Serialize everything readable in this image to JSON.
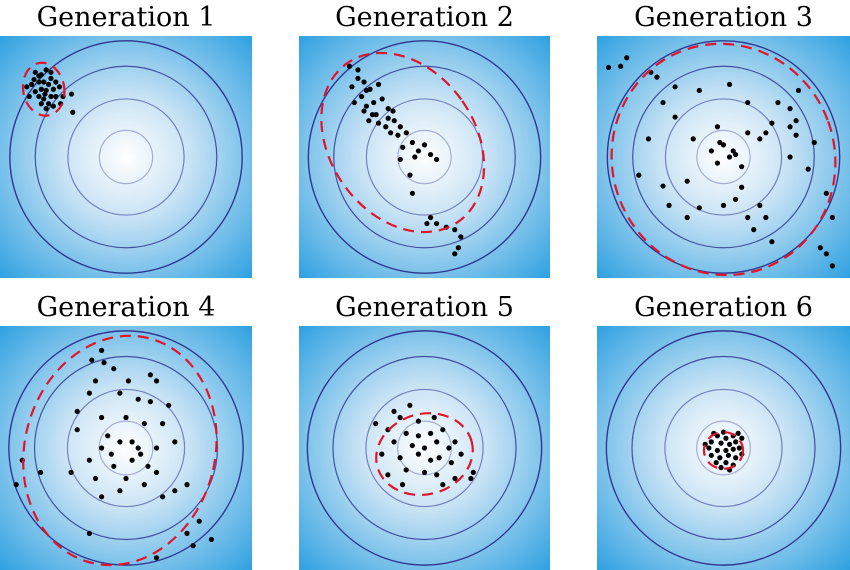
{
  "colors": {
    "background_outer": "#2a9fe0",
    "background_center": "#ffffff",
    "contour": "#2b2f8a",
    "ellipse": "#e0152b",
    "points": "#000000"
  },
  "panels": [
    {
      "title": "Generation 1",
      "ellipse": {
        "cx": -0.68,
        "cy": 0.56,
        "rx": 0.17,
        "ry": 0.22,
        "rot": -10
      },
      "points": [
        [
          -0.75,
          0.7
        ],
        [
          -0.7,
          0.68
        ],
        [
          -0.66,
          0.72
        ],
        [
          -0.62,
          0.65
        ],
        [
          -0.72,
          0.62
        ],
        [
          -0.78,
          0.6
        ],
        [
          -0.64,
          0.6
        ],
        [
          -0.58,
          0.62
        ],
        [
          -0.7,
          0.56
        ],
        [
          -0.75,
          0.54
        ],
        [
          -0.66,
          0.55
        ],
        [
          -0.6,
          0.56
        ],
        [
          -0.55,
          0.58
        ],
        [
          -0.8,
          0.5
        ],
        [
          -0.72,
          0.5
        ],
        [
          -0.68,
          0.48
        ],
        [
          -0.62,
          0.5
        ],
        [
          -0.58,
          0.5
        ],
        [
          -0.64,
          0.44
        ],
        [
          -0.7,
          0.44
        ],
        [
          -0.6,
          0.42
        ],
        [
          -0.54,
          0.44
        ],
        [
          -0.76,
          0.64
        ],
        [
          -0.68,
          0.62
        ],
        [
          -0.52,
          0.5
        ],
        [
          -0.45,
          0.52
        ],
        [
          -0.44,
          0.37
        ],
        [
          -0.66,
          0.4
        ],
        [
          -0.82,
          0.58
        ],
        [
          -0.62,
          0.7
        ],
        [
          -0.72,
          0.67
        ],
        [
          -0.67,
          0.52
        ]
      ]
    },
    {
      "title": "Generation 2",
      "ellipse": {
        "cx": -0.18,
        "cy": 0.12,
        "rx": 0.6,
        "ry": 0.8,
        "rot": -35
      },
      "points": [
        [
          -0.62,
          0.75
        ],
        [
          -0.55,
          0.72
        ],
        [
          -0.5,
          0.62
        ],
        [
          -0.6,
          0.58
        ],
        [
          -0.45,
          0.56
        ],
        [
          -0.52,
          0.5
        ],
        [
          -0.58,
          0.45
        ],
        [
          -0.48,
          0.42
        ],
        [
          -0.42,
          0.45
        ],
        [
          -0.35,
          0.48
        ],
        [
          -0.3,
          0.4
        ],
        [
          -0.4,
          0.35
        ],
        [
          -0.46,
          0.3
        ],
        [
          -0.38,
          0.28
        ],
        [
          -0.32,
          0.25
        ],
        [
          -0.25,
          0.3
        ],
        [
          -0.2,
          0.25
        ],
        [
          -0.28,
          0.2
        ],
        [
          -0.22,
          0.18
        ],
        [
          -0.15,
          0.2
        ],
        [
          -0.1,
          0.12
        ],
        [
          -0.18,
          0.08
        ],
        [
          -0.05,
          0.05
        ],
        [
          0.0,
          0.1
        ],
        [
          -0.08,
          0.0
        ],
        [
          -0.2,
          -0.02
        ],
        [
          0.05,
          0.02
        ],
        [
          0.1,
          -0.02
        ],
        [
          -0.12,
          -0.15
        ],
        [
          -0.1,
          -0.3
        ],
        [
          -0.55,
          0.65
        ],
        [
          -0.48,
          0.55
        ],
        [
          0.02,
          -0.55
        ],
        [
          0.05,
          -0.5
        ],
        [
          0.1,
          -0.55
        ],
        [
          0.18,
          -0.58
        ],
        [
          0.25,
          -0.6
        ],
        [
          0.3,
          -0.66
        ],
        [
          0.25,
          -0.8
        ],
        [
          0.28,
          -0.75
        ],
        [
          -0.38,
          0.6
        ],
        [
          -0.5,
          0.38
        ],
        [
          -0.3,
          0.32
        ],
        [
          -0.43,
          0.35
        ],
        [
          -0.26,
          0.38
        ]
      ]
    },
    {
      "title": "Generation 3",
      "ellipse": {
        "cx": 0.0,
        "cy": -0.02,
        "rx": 0.92,
        "ry": 0.96,
        "rot": -20
      },
      "points": [
        [
          -0.95,
          0.74
        ],
        [
          -0.85,
          0.75
        ],
        [
          -0.8,
          0.82
        ],
        [
          -0.55,
          0.66
        ],
        [
          -0.4,
          0.58
        ],
        [
          -0.5,
          0.45
        ],
        [
          -0.4,
          0.33
        ],
        [
          -0.62,
          0.15
        ],
        [
          -0.7,
          -0.15
        ],
        [
          -0.5,
          -0.24
        ],
        [
          -0.45,
          -0.4
        ],
        [
          -0.3,
          -0.2
        ],
        [
          -0.3,
          -0.5
        ],
        [
          -0.2,
          -0.42
        ],
        [
          0.0,
          -0.4
        ],
        [
          0.1,
          -0.35
        ],
        [
          0.2,
          -0.5
        ],
        [
          0.25,
          -0.6
        ],
        [
          0.3,
          -0.4
        ],
        [
          0.4,
          -0.7
        ],
        [
          0.35,
          -0.5
        ],
        [
          0.0,
          0.1
        ],
        [
          -0.1,
          0.05
        ],
        [
          0.05,
          0.0
        ],
        [
          0.1,
          0.02
        ],
        [
          -0.05,
          -0.05
        ],
        [
          0.15,
          -0.08
        ],
        [
          0.08,
          0.05
        ],
        [
          -0.03,
          0.12
        ],
        [
          0.2,
          0.2
        ],
        [
          0.3,
          0.15
        ],
        [
          0.4,
          0.28
        ],
        [
          0.55,
          0.25
        ],
        [
          0.6,
          0.18
        ],
        [
          0.55,
          0.0
        ],
        [
          0.7,
          -0.1
        ],
        [
          0.85,
          -0.3
        ],
        [
          0.9,
          -0.5
        ],
        [
          0.8,
          -0.75
        ],
        [
          0.85,
          -0.8
        ],
        [
          0.9,
          -0.9
        ],
        [
          -0.05,
          0.25
        ],
        [
          0.45,
          0.45
        ],
        [
          0.55,
          0.4
        ],
        [
          0.6,
          0.3
        ],
        [
          0.2,
          0.45
        ],
        [
          -0.2,
          0.55
        ],
        [
          0.05,
          0.6
        ],
        [
          0.35,
          0.2
        ],
        [
          -0.25,
          0.15
        ],
        [
          0.15,
          -0.25
        ],
        [
          0.75,
          0.12
        ],
        [
          0.62,
          0.55
        ],
        [
          -0.6,
          0.7
        ]
      ]
    },
    {
      "title": "Generation 4",
      "ellipse": {
        "cx": -0.05,
        "cy": -0.02,
        "rx": 0.78,
        "ry": 0.95,
        "rot": 15
      },
      "points": [
        [
          -0.2,
          0.8
        ],
        [
          -0.18,
          0.7
        ],
        [
          -0.1,
          0.65
        ],
        [
          0.2,
          0.6
        ],
        [
          0.25,
          0.55
        ],
        [
          -0.25,
          0.55
        ],
        [
          -0.3,
          0.45
        ],
        [
          -0.05,
          0.45
        ],
        [
          0.1,
          0.4
        ],
        [
          0.2,
          0.38
        ],
        [
          0.35,
          0.35
        ],
        [
          -0.4,
          0.3
        ],
        [
          -0.2,
          0.25
        ],
        [
          0.0,
          0.25
        ],
        [
          0.15,
          0.2
        ],
        [
          -0.15,
          0.1
        ],
        [
          -0.05,
          0.05
        ],
        [
          0.05,
          0.05
        ],
        [
          0.1,
          0.0
        ],
        [
          -0.2,
          0.0
        ],
        [
          0.25,
          0.0
        ],
        [
          0.4,
          0.05
        ],
        [
          -0.3,
          -0.1
        ],
        [
          -0.1,
          -0.15
        ],
        [
          0.05,
          -0.1
        ],
        [
          0.18,
          -0.15
        ],
        [
          0.25,
          -0.2
        ],
        [
          -0.45,
          -0.2
        ],
        [
          -0.25,
          -0.25
        ],
        [
          0.0,
          -0.25
        ],
        [
          0.15,
          -0.3
        ],
        [
          -0.05,
          -0.35
        ],
        [
          -0.2,
          -0.4
        ],
        [
          0.3,
          -0.4
        ],
        [
          0.4,
          -0.35
        ],
        [
          -0.85,
          -0.1
        ],
        [
          -0.9,
          -0.3
        ],
        [
          -0.7,
          -0.2
        ],
        [
          0.5,
          -0.3
        ],
        [
          0.5,
          -0.7
        ],
        [
          0.6,
          -0.6
        ],
        [
          0.7,
          -0.75
        ],
        [
          0.55,
          -0.8
        ],
        [
          0.25,
          -0.9
        ],
        [
          -0.3,
          -0.7
        ],
        [
          -0.28,
          0.72
        ],
        [
          0.02,
          0.55
        ],
        [
          -0.4,
          0.15
        ],
        [
          0.3,
          0.2
        ],
        [
          0.12,
          -0.05
        ],
        [
          -0.12,
          -0.05
        ]
      ]
    },
    {
      "title": "Generation 5",
      "ellipse": {
        "cx": 0.0,
        "cy": -0.05,
        "rx": 0.4,
        "ry": 0.33,
        "rot": -15
      },
      "points": [
        [
          -0.25,
          0.3
        ],
        [
          -0.2,
          0.25
        ],
        [
          -0.05,
          0.22
        ],
        [
          -0.3,
          0.15
        ],
        [
          -0.15,
          0.12
        ],
        [
          -0.05,
          0.1
        ],
        [
          0.05,
          0.12
        ],
        [
          0.15,
          0.15
        ],
        [
          -0.25,
          0.05
        ],
        [
          -0.1,
          0.02
        ],
        [
          0.0,
          0.0
        ],
        [
          0.1,
          0.05
        ],
        [
          0.2,
          0.0
        ],
        [
          0.25,
          0.05
        ],
        [
          -0.35,
          -0.05
        ],
        [
          -0.2,
          -0.08
        ],
        [
          -0.05,
          -0.05
        ],
        [
          0.05,
          -0.1
        ],
        [
          0.12,
          -0.08
        ],
        [
          0.22,
          -0.12
        ],
        [
          0.3,
          -0.05
        ],
        [
          -0.15,
          -0.18
        ],
        [
          0.0,
          -0.2
        ],
        [
          0.1,
          -0.22
        ],
        [
          0.25,
          -0.25
        ],
        [
          0.4,
          -0.2
        ],
        [
          -0.3,
          -0.22
        ],
        [
          -0.18,
          -0.3
        ],
        [
          0.15,
          -0.3
        ],
        [
          0.38,
          -0.25
        ],
        [
          -0.4,
          0.2
        ],
        [
          0.08,
          0.25
        ],
        [
          -0.12,
          0.35
        ]
      ]
    },
    {
      "title": "Generation 6",
      "ellipse": {
        "cx": 0.0,
        "cy": -0.02,
        "rx": 0.16,
        "ry": 0.15,
        "rot": 0
      },
      "points": [
        [
          -0.05,
          0.1
        ],
        [
          0.02,
          0.08
        ],
        [
          0.08,
          0.1
        ],
        [
          -0.1,
          0.05
        ],
        [
          -0.02,
          0.04
        ],
        [
          0.05,
          0.03
        ],
        [
          0.1,
          0.05
        ],
        [
          -0.12,
          0.0
        ],
        [
          -0.05,
          -0.02
        ],
        [
          0.02,
          -0.02
        ],
        [
          0.08,
          -0.01
        ],
        [
          0.13,
          0.0
        ],
        [
          -0.1,
          -0.06
        ],
        [
          -0.03,
          -0.08
        ],
        [
          0.04,
          -0.06
        ],
        [
          0.1,
          -0.08
        ],
        [
          0.15,
          -0.05
        ],
        [
          -0.06,
          -0.12
        ],
        [
          0.02,
          -0.12
        ],
        [
          0.08,
          -0.14
        ],
        [
          -0.15,
          0.03
        ],
        [
          0.12,
          0.12
        ],
        [
          -0.08,
          0.12
        ],
        [
          0.0,
          0.13
        ],
        [
          0.05,
          -0.18
        ],
        [
          -0.02,
          -0.16
        ],
        [
          0.15,
          0.08
        ]
      ]
    }
  ]
}
